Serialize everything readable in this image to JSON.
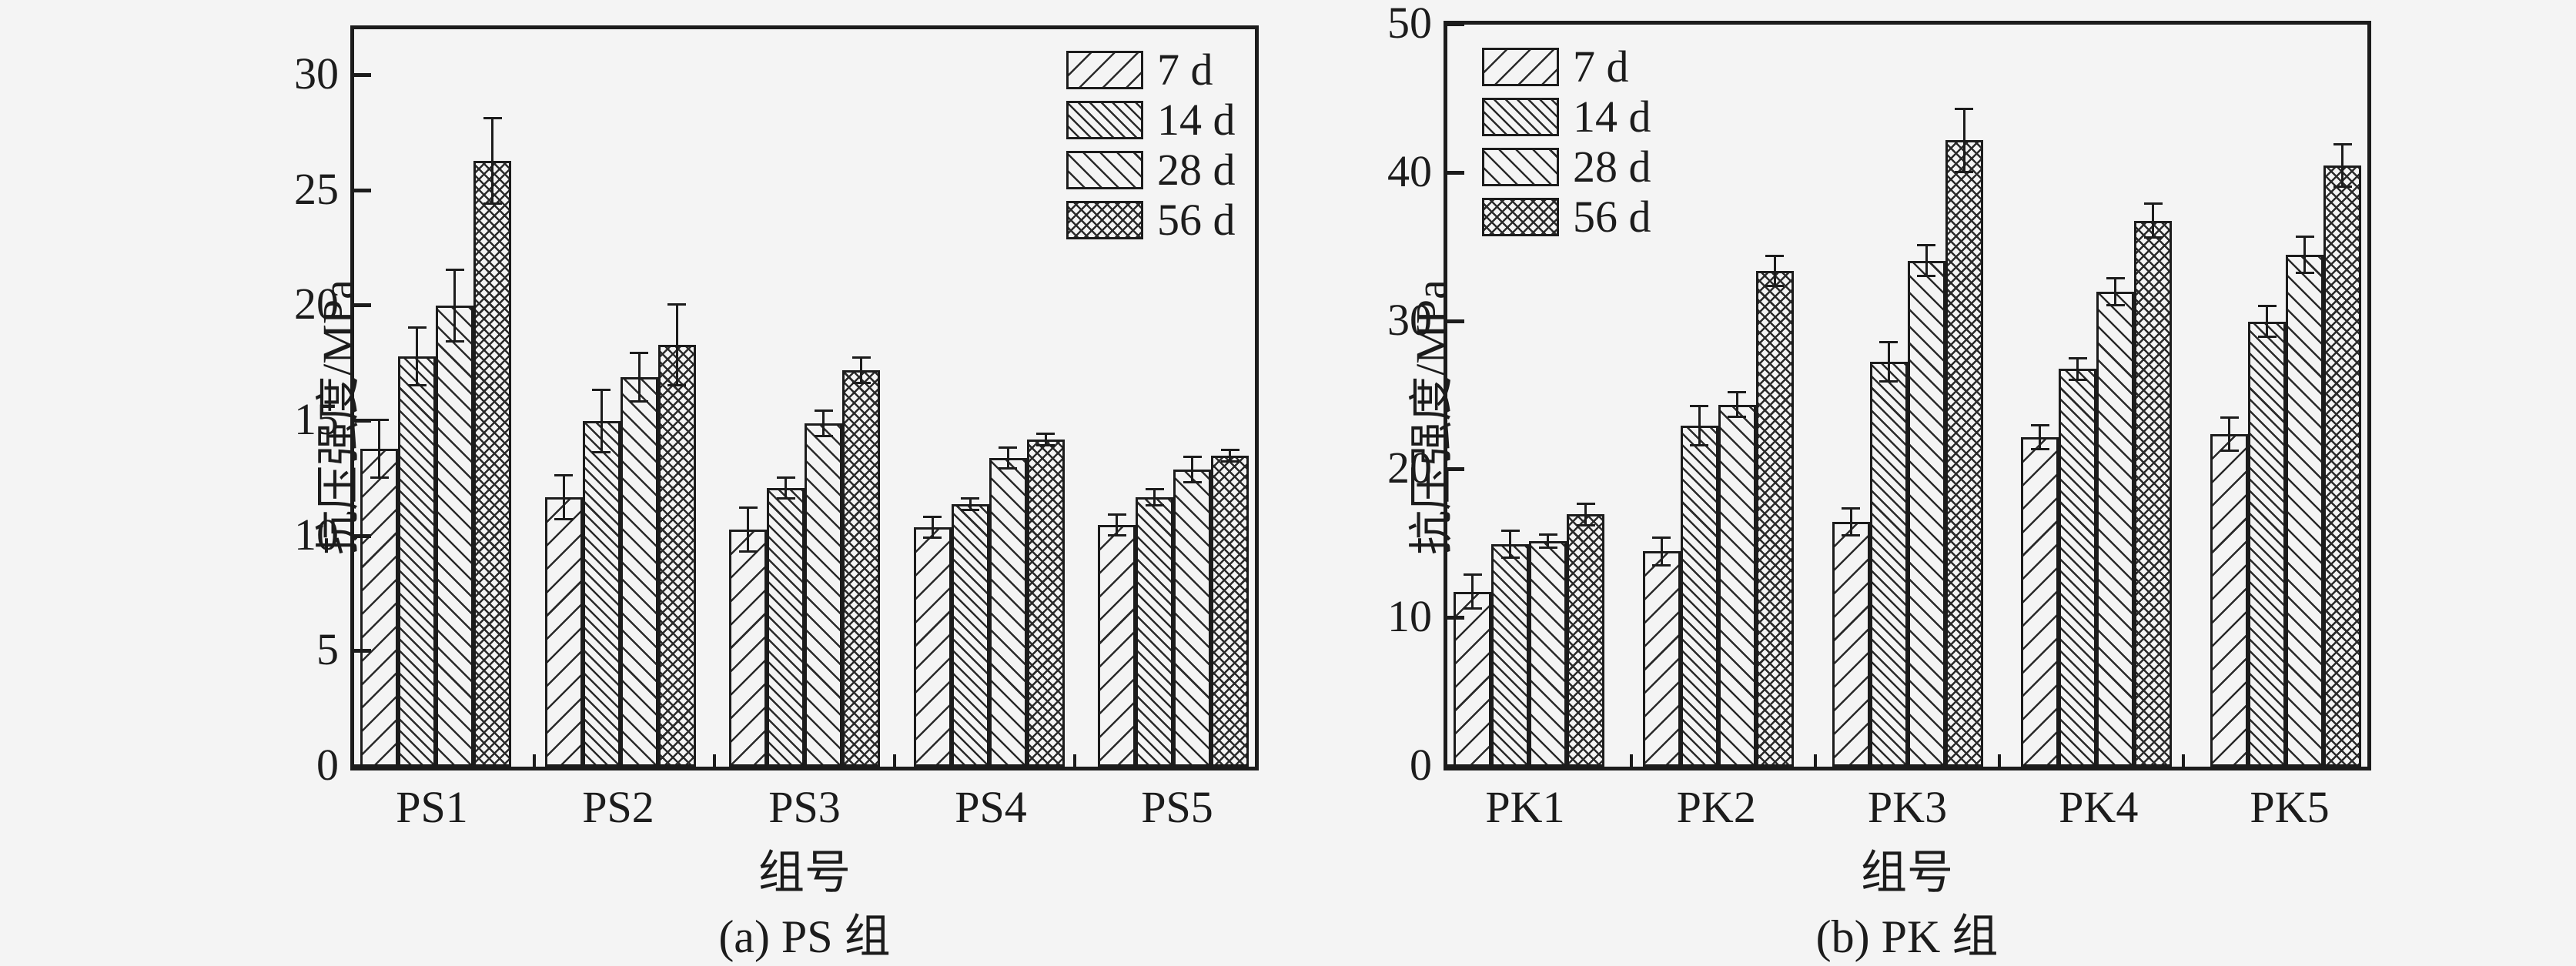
{
  "figure": {
    "background_color": "#f4f4f4",
    "ink_color": "#1c1c1c"
  },
  "legend": {
    "items": [
      {
        "label": "7 d",
        "pattern": "forward-diagonal-sparse"
      },
      {
        "label": "14 d",
        "pattern": "backward-diagonal-dense"
      },
      {
        "label": "28 d",
        "pattern": "backward-diagonal-medium"
      },
      {
        "label": "56 d",
        "pattern": "crosshatch-diamond"
      }
    ]
  },
  "chart_data": [
    {
      "id": "a",
      "type": "bar",
      "caption": "(a) PS 组",
      "xlabel": "组号",
      "ylabel": "抗压强度/MPa",
      "ylim": [
        0,
        32
      ],
      "yticks": [
        0,
        5,
        10,
        15,
        20,
        25,
        30
      ],
      "grid": false,
      "legend_position": "top-right",
      "error_bars": true,
      "categories": [
        "PS1",
        "PS2",
        "PS3",
        "PS4",
        "PS5"
      ],
      "series": [
        {
          "name": "7 d",
          "values": [
            13.8,
            11.7,
            10.3,
            10.4,
            10.5
          ],
          "errors": [
            1.3,
            1.0,
            1.0,
            0.5,
            0.5
          ]
        },
        {
          "name": "14 d",
          "values": [
            17.8,
            15.0,
            12.1,
            11.4,
            11.7
          ],
          "errors": [
            1.3,
            1.4,
            0.5,
            0.3,
            0.4
          ]
        },
        {
          "name": "28 d",
          "values": [
            20.0,
            16.9,
            14.9,
            13.4,
            12.9
          ],
          "errors": [
            1.6,
            1.1,
            0.6,
            0.5,
            0.6
          ]
        },
        {
          "name": "56 d",
          "values": [
            26.3,
            18.3,
            17.2,
            14.2,
            13.5
          ],
          "errors": [
            1.9,
            1.8,
            0.6,
            0.3,
            0.3
          ]
        }
      ]
    },
    {
      "id": "b",
      "type": "bar",
      "caption": "(b) PK 组",
      "xlabel": "组号",
      "ylabel": "抗压强度/MPa",
      "ylim": [
        0,
        50
      ],
      "yticks": [
        0,
        10,
        20,
        30,
        40,
        50
      ],
      "grid": false,
      "legend_position": "top-left",
      "error_bars": true,
      "categories": [
        "PK1",
        "PK2",
        "PK3",
        "PK4",
        "PK5"
      ],
      "series": [
        {
          "name": "7 d",
          "values": [
            11.8,
            14.5,
            16.5,
            22.2,
            22.4
          ],
          "errors": [
            1.2,
            1.0,
            1.0,
            0.9,
            1.2
          ]
        },
        {
          "name": "14 d",
          "values": [
            15.0,
            23.0,
            27.3,
            26.8,
            30.0
          ],
          "errors": [
            1.0,
            1.4,
            1.4,
            0.8,
            1.1
          ]
        },
        {
          "name": "28 d",
          "values": [
            15.2,
            24.4,
            34.1,
            32.0,
            34.5
          ],
          "errors": [
            0.5,
            0.9,
            1.1,
            1.0,
            1.3
          ]
        },
        {
          "name": "56 d",
          "values": [
            17.0,
            33.4,
            42.2,
            36.8,
            40.5
          ],
          "errors": [
            0.8,
            1.1,
            2.2,
            1.2,
            1.5
          ]
        }
      ]
    }
  ]
}
